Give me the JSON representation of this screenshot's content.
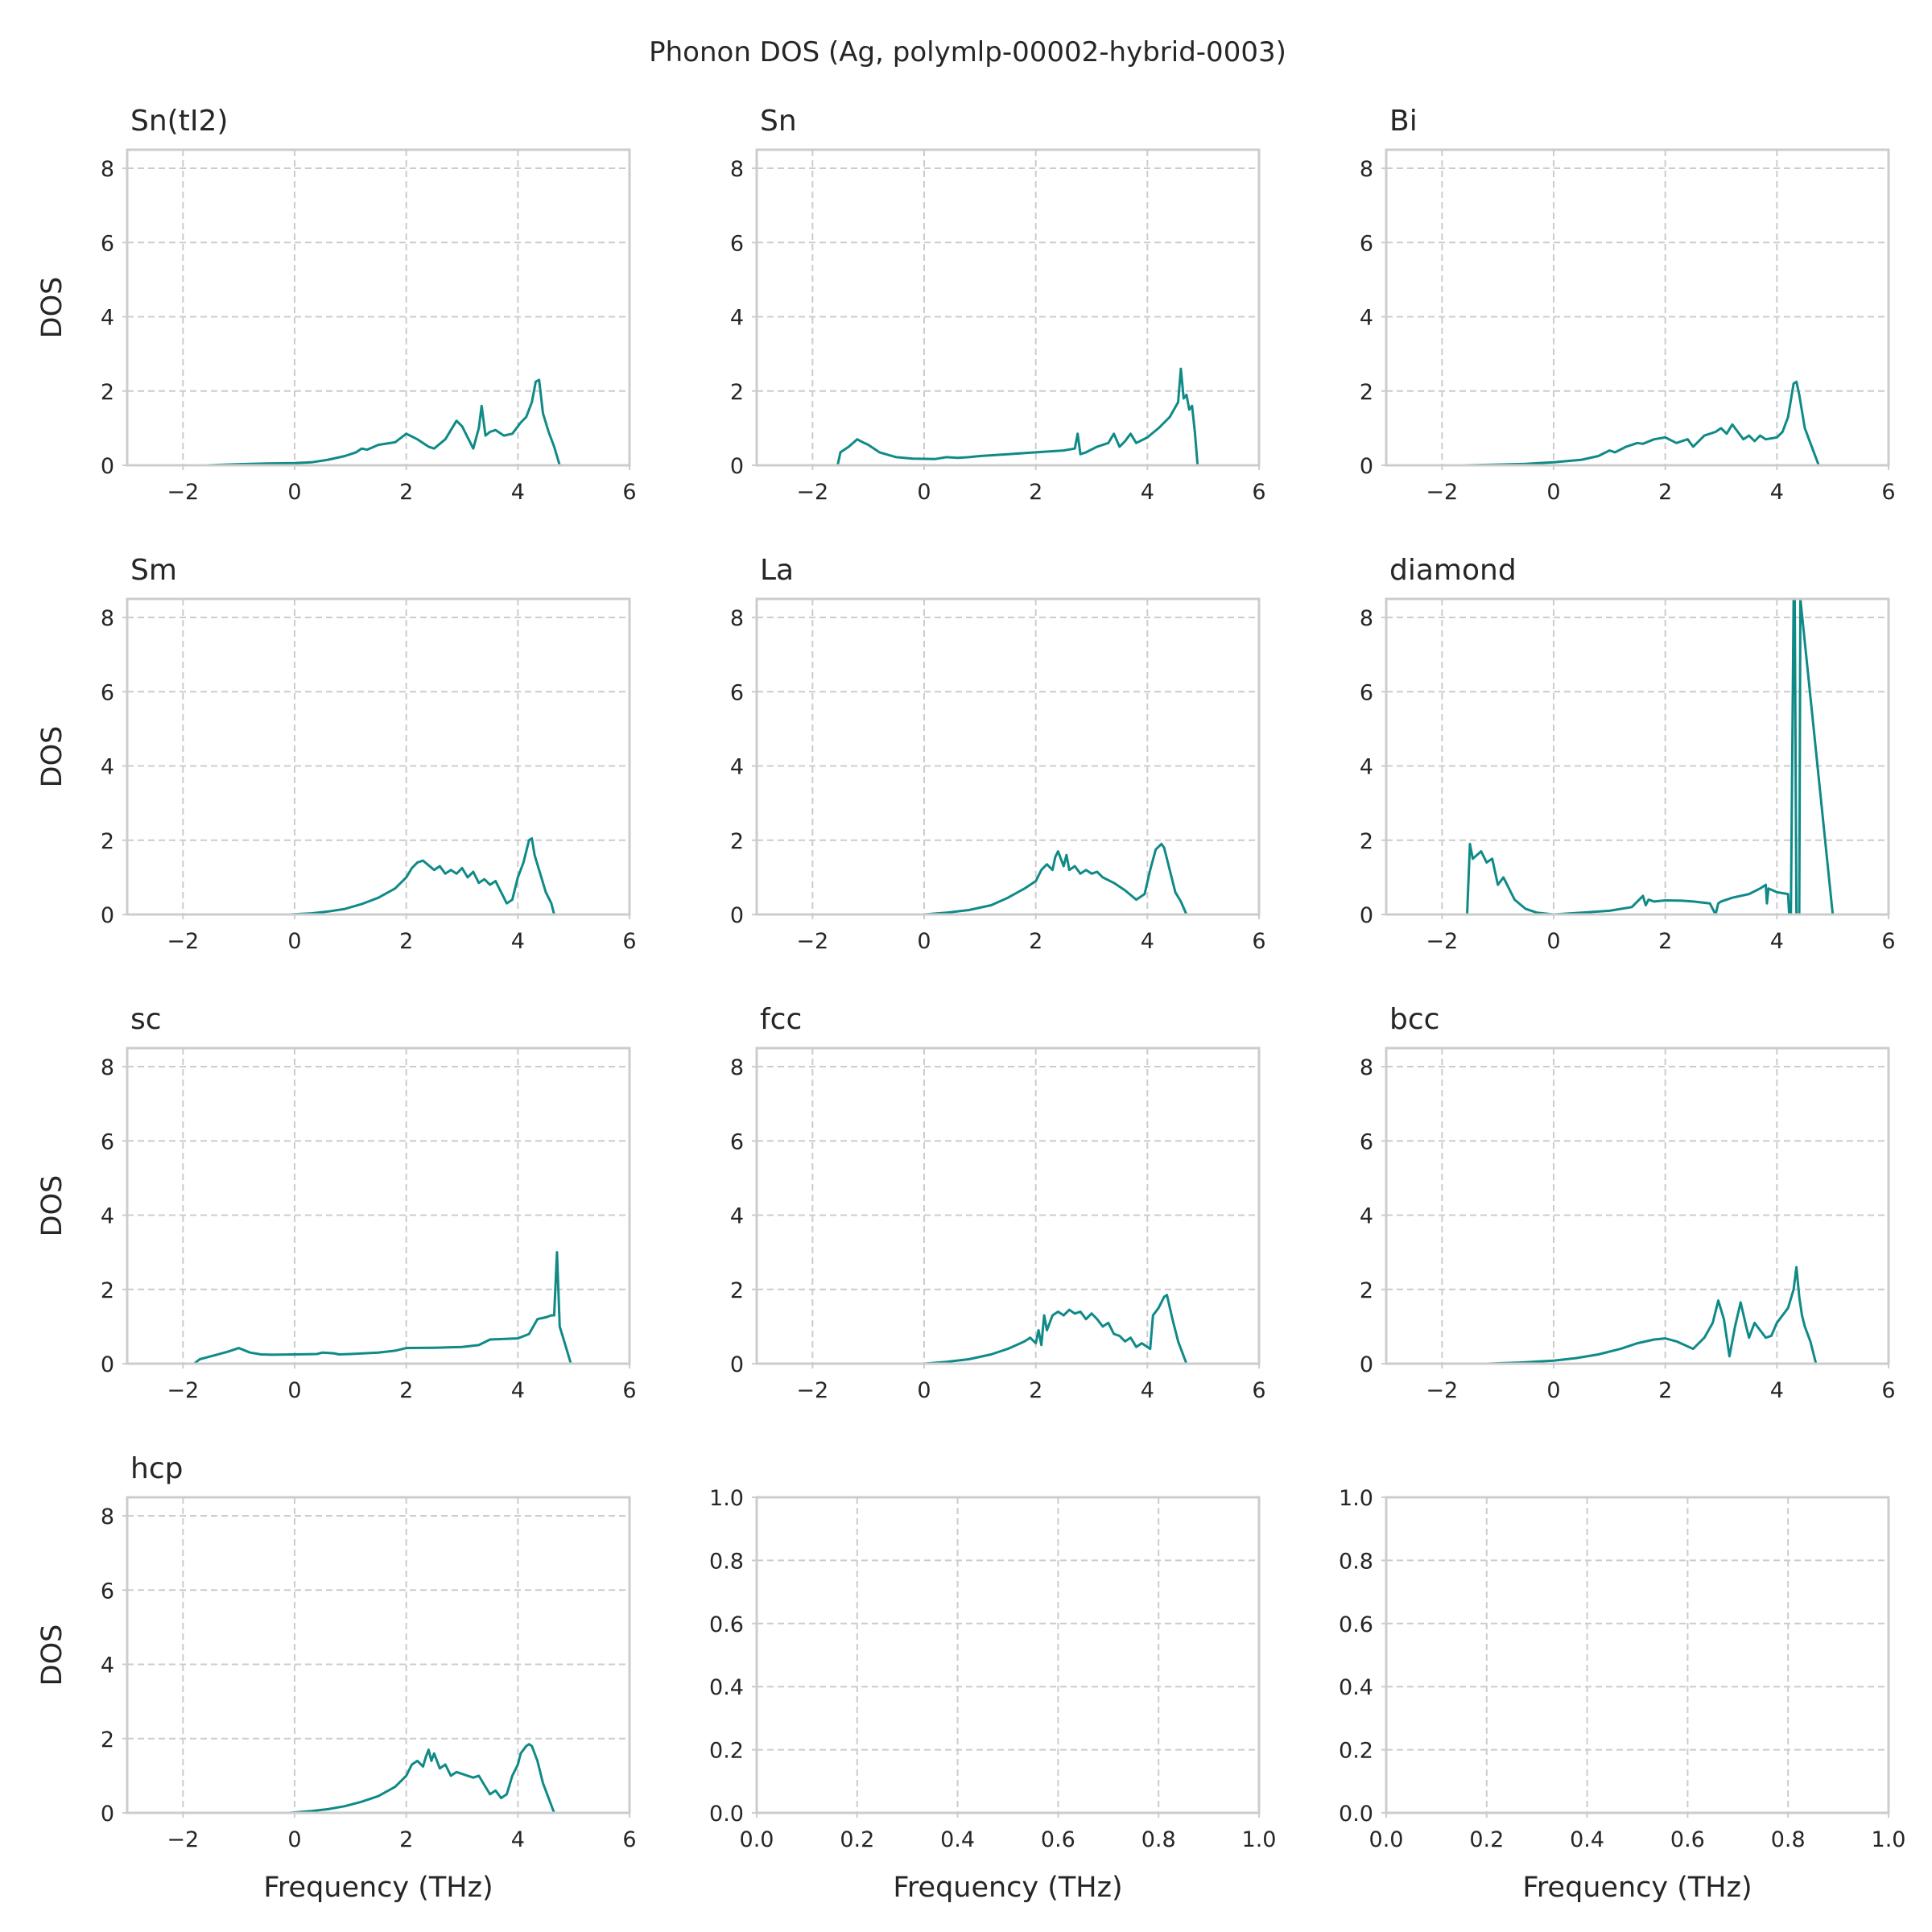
{
  "figure": {
    "title": "Phonon DOS (Ag, polymlp-00002-hybrid-0003)",
    "line_color": "#0f8a87",
    "grid_color": "#cccccc",
    "text_color": "#262626"
  },
  "chart_data": [
    {
      "type": "line",
      "title": "Sn(tI2)",
      "xlabel": "",
      "ylabel": "DOS",
      "xlim": [
        -3,
        6
      ],
      "ylim": [
        0,
        8.5
      ],
      "xticks": [
        -2,
        0,
        2,
        4,
        6
      ],
      "yticks": [
        0,
        2,
        4,
        6,
        8
      ],
      "grid": true,
      "series": [
        {
          "x": [
            -1.6,
            -1.0,
            -0.5,
            0.0,
            0.3,
            0.6,
            0.9,
            1.1,
            1.2,
            1.3,
            1.5,
            1.8,
            2.0,
            2.2,
            2.4,
            2.5,
            2.7,
            2.9,
            3.0,
            3.2,
            3.3,
            3.35,
            3.42,
            3.5,
            3.6,
            3.75,
            3.9,
            4.05,
            4.15,
            4.25,
            4.32,
            4.38,
            4.45,
            4.55,
            4.65,
            4.75,
            4.85,
            5.3
          ],
          "y": [
            0.0,
            0.03,
            0.05,
            0.06,
            0.08,
            0.15,
            0.25,
            0.35,
            0.45,
            0.42,
            0.55,
            0.62,
            0.85,
            0.7,
            0.5,
            0.45,
            0.7,
            1.2,
            1.05,
            0.45,
            1.0,
            1.6,
            0.8,
            0.9,
            0.95,
            0.8,
            0.85,
            1.15,
            1.3,
            1.7,
            2.25,
            2.3,
            1.4,
            0.9,
            0.5,
            0.0,
            0.0,
            0.0
          ]
        }
      ]
    },
    {
      "type": "line",
      "title": "Sn",
      "xlabel": "",
      "ylabel": "",
      "xlim": [
        -3,
        6
      ],
      "ylim": [
        0,
        8.5
      ],
      "xticks": [
        -2,
        0,
        2,
        4,
        6
      ],
      "yticks": [
        0,
        2,
        4,
        6,
        8
      ],
      "grid": true,
      "series": [
        {
          "x": [
            -2.2,
            -1.55,
            -1.5,
            -1.35,
            -1.2,
            -1.1,
            -1.0,
            -0.8,
            -0.5,
            -0.2,
            0.2,
            0.4,
            0.6,
            0.8,
            1.0,
            1.5,
            2.0,
            2.5,
            2.7,
            2.75,
            2.8,
            2.9,
            3.1,
            3.3,
            3.4,
            3.5,
            3.6,
            3.7,
            3.8,
            4.0,
            4.2,
            4.4,
            4.55,
            4.6,
            4.65,
            4.7,
            4.75,
            4.8,
            4.85,
            4.9,
            5.5
          ],
          "y": [
            0.0,
            0.0,
            0.35,
            0.5,
            0.7,
            0.62,
            0.55,
            0.35,
            0.22,
            0.18,
            0.17,
            0.22,
            0.2,
            0.22,
            0.25,
            0.3,
            0.35,
            0.4,
            0.45,
            0.85,
            0.3,
            0.35,
            0.5,
            0.6,
            0.85,
            0.5,
            0.65,
            0.85,
            0.6,
            0.75,
            1.0,
            1.3,
            1.7,
            2.6,
            1.8,
            1.9,
            1.5,
            1.6,
            0.9,
            0.0,
            0.0
          ]
        }
      ]
    },
    {
      "type": "line",
      "title": "Bi",
      "xlabel": "",
      "ylabel": "",
      "xlim": [
        -3,
        6
      ],
      "ylim": [
        0,
        8.5
      ],
      "xticks": [
        -2,
        0,
        2,
        4,
        6
      ],
      "yticks": [
        0,
        2,
        4,
        6,
        8
      ],
      "grid": true,
      "series": [
        {
          "x": [
            -1.6,
            -1.0,
            -0.5,
            0.0,
            0.5,
            0.8,
            1.0,
            1.1,
            1.3,
            1.5,
            1.6,
            1.8,
            2.0,
            2.2,
            2.4,
            2.5,
            2.7,
            2.9,
            3.0,
            3.1,
            3.2,
            3.3,
            3.4,
            3.5,
            3.6,
            3.7,
            3.8,
            4.0,
            4.1,
            4.2,
            4.3,
            4.35,
            4.4,
            4.5,
            4.6,
            4.75,
            5.3
          ],
          "y": [
            0.0,
            0.02,
            0.04,
            0.08,
            0.15,
            0.25,
            0.4,
            0.35,
            0.5,
            0.6,
            0.58,
            0.7,
            0.75,
            0.6,
            0.7,
            0.5,
            0.8,
            0.9,
            1.0,
            0.85,
            1.1,
            0.9,
            0.7,
            0.8,
            0.65,
            0.8,
            0.7,
            0.75,
            0.9,
            1.3,
            2.2,
            2.25,
            1.9,
            1.0,
            0.6,
            0.0,
            0.0
          ]
        }
      ]
    },
    {
      "type": "line",
      "title": "Sm",
      "xlabel": "",
      "ylabel": "DOS",
      "xlim": [
        -3,
        6
      ],
      "ylim": [
        0,
        8.5
      ],
      "xticks": [
        -2,
        0,
        2,
        4,
        6
      ],
      "yticks": [
        0,
        2,
        4,
        6,
        8
      ],
      "grid": true,
      "series": [
        {
          "x": [
            -0.1,
            0.3,
            0.6,
            0.9,
            1.2,
            1.5,
            1.8,
            2.0,
            2.1,
            2.2,
            2.3,
            2.5,
            2.6,
            2.7,
            2.8,
            2.9,
            3.0,
            3.1,
            3.2,
            3.3,
            3.4,
            3.5,
            3.6,
            3.7,
            3.8,
            3.9,
            4.0,
            4.1,
            4.15,
            4.2,
            4.25,
            4.3,
            4.4,
            4.5,
            4.6,
            4.65,
            5.1
          ],
          "y": [
            0.0,
            0.03,
            0.08,
            0.15,
            0.28,
            0.45,
            0.7,
            1.0,
            1.25,
            1.4,
            1.45,
            1.2,
            1.3,
            1.1,
            1.2,
            1.1,
            1.25,
            1.0,
            1.15,
            0.85,
            0.95,
            0.8,
            0.9,
            0.6,
            0.3,
            0.4,
            1.0,
            1.4,
            1.7,
            2.0,
            2.05,
            1.6,
            1.1,
            0.6,
            0.3,
            0.0,
            0.0
          ]
        }
      ]
    },
    {
      "type": "line",
      "title": "La",
      "xlabel": "",
      "ylabel": "",
      "xlim": [
        -3,
        6
      ],
      "ylim": [
        0,
        8.5
      ],
      "xticks": [
        -2,
        0,
        2,
        4,
        6
      ],
      "yticks": [
        0,
        2,
        4,
        6,
        8
      ],
      "grid": true,
      "series": [
        {
          "x": [
            0.0,
            0.4,
            0.8,
            1.2,
            1.5,
            1.8,
            2.0,
            2.1,
            2.2,
            2.3,
            2.35,
            2.4,
            2.5,
            2.55,
            2.6,
            2.7,
            2.8,
            2.9,
            3.0,
            3.1,
            3.2,
            3.4,
            3.6,
            3.8,
            3.95,
            4.05,
            4.15,
            4.25,
            4.3,
            4.4,
            4.5,
            4.6,
            4.7,
            5.1
          ],
          "y": [
            0.0,
            0.05,
            0.12,
            0.25,
            0.45,
            0.7,
            0.9,
            1.2,
            1.35,
            1.2,
            1.55,
            1.7,
            1.3,
            1.6,
            1.2,
            1.3,
            1.1,
            1.2,
            1.1,
            1.15,
            1.0,
            0.85,
            0.65,
            0.4,
            0.55,
            1.2,
            1.75,
            1.9,
            1.8,
            1.2,
            0.6,
            0.35,
            0.0,
            0.0
          ]
        }
      ]
    },
    {
      "type": "line",
      "title": "diamond",
      "xlabel": "",
      "ylabel": "",
      "xlim": [
        -3,
        6
      ],
      "ylim": [
        0,
        8.5
      ],
      "xticks": [
        -2,
        0,
        2,
        4,
        6
      ],
      "yticks": [
        0,
        2,
        4,
        6,
        8
      ],
      "grid": true,
      "series": [
        {
          "x": [
            -2.0,
            -1.55,
            -1.5,
            -1.45,
            -1.3,
            -1.2,
            -1.1,
            -1.0,
            -0.9,
            -0.7,
            -0.5,
            -0.3,
            0.0,
            0.5,
            1.0,
            1.4,
            1.6,
            1.65,
            1.7,
            1.8,
            2.0,
            2.3,
            2.5,
            2.8,
            2.9,
            2.95,
            3.0,
            3.2,
            3.5,
            3.7,
            3.8,
            3.82,
            3.85,
            4.0,
            4.2,
            4.22,
            4.25,
            4.3,
            4.32,
            4.35,
            4.4,
            4.42,
            5.0
          ],
          "y": [
            0.0,
            0.0,
            1.9,
            1.5,
            1.7,
            1.4,
            1.5,
            0.8,
            1.0,
            0.4,
            0.15,
            0.05,
            0.0,
            0.05,
            0.1,
            0.2,
            0.5,
            0.25,
            0.4,
            0.35,
            0.38,
            0.37,
            0.35,
            0.3,
            0.0,
            0.3,
            0.35,
            0.45,
            0.55,
            0.7,
            0.8,
            0.3,
            0.7,
            0.6,
            0.55,
            0.0,
            0.0,
            8.5,
            8.5,
            0.0,
            0.0,
            8.5,
            0.0
          ]
        }
      ]
    },
    {
      "type": "line",
      "title": "sc",
      "xlabel": "",
      "ylabel": "DOS",
      "xlim": [
        -3,
        6
      ],
      "ylim": [
        0,
        8.5
      ],
      "xticks": [
        -2,
        0,
        2,
        4,
        6
      ],
      "yticks": [
        0,
        2,
        4,
        6,
        8
      ],
      "grid": true,
      "series": [
        {
          "x": [
            -2.4,
            -1.8,
            -1.7,
            -1.5,
            -1.2,
            -1.0,
            -0.8,
            -0.6,
            -0.4,
            0.0,
            0.4,
            0.5,
            0.7,
            0.8,
            1.0,
            1.5,
            1.8,
            2.0,
            2.5,
            3.0,
            3.3,
            3.5,
            4.0,
            4.2,
            4.35,
            4.5,
            4.6,
            4.65,
            4.7,
            4.75,
            4.85,
            4.95,
            5.5
          ],
          "y": [
            0.0,
            0.0,
            0.12,
            0.2,
            0.32,
            0.42,
            0.3,
            0.25,
            0.24,
            0.25,
            0.26,
            0.3,
            0.28,
            0.25,
            0.26,
            0.3,
            0.35,
            0.42,
            0.43,
            0.45,
            0.5,
            0.65,
            0.68,
            0.8,
            1.2,
            1.25,
            1.3,
            1.3,
            3.0,
            1.0,
            0.5,
            0.0,
            0.0
          ]
        }
      ]
    },
    {
      "type": "line",
      "title": "fcc",
      "xlabel": "",
      "ylabel": "",
      "xlim": [
        -3,
        6
      ],
      "ylim": [
        0,
        8.5
      ],
      "xticks": [
        -2,
        0,
        2,
        4,
        6
      ],
      "yticks": [
        0,
        2,
        4,
        6,
        8
      ],
      "grid": true,
      "series": [
        {
          "x": [
            0.0,
            0.4,
            0.8,
            1.2,
            1.5,
            1.8,
            1.9,
            2.0,
            2.05,
            2.1,
            2.15,
            2.2,
            2.3,
            2.4,
            2.5,
            2.6,
            2.7,
            2.8,
            2.9,
            3.0,
            3.1,
            3.2,
            3.3,
            3.4,
            3.5,
            3.6,
            3.7,
            3.8,
            3.9,
            4.05,
            4.1,
            4.2,
            4.3,
            4.35,
            4.45,
            4.55,
            4.7,
            5.2
          ],
          "y": [
            0.0,
            0.05,
            0.12,
            0.25,
            0.4,
            0.6,
            0.7,
            0.55,
            0.9,
            0.5,
            1.3,
            0.9,
            1.3,
            1.4,
            1.3,
            1.45,
            1.35,
            1.4,
            1.2,
            1.35,
            1.2,
            1.0,
            1.1,
            0.8,
            0.75,
            0.6,
            0.7,
            0.45,
            0.55,
            0.4,
            1.3,
            1.5,
            1.8,
            1.85,
            1.2,
            0.6,
            0.0,
            0.0
          ]
        }
      ]
    },
    {
      "type": "line",
      "title": "bcc",
      "xlabel": "",
      "ylabel": "",
      "xlim": [
        -3,
        6
      ],
      "ylim": [
        0,
        8.5
      ],
      "xticks": [
        -2,
        0,
        2,
        4,
        6
      ],
      "yticks": [
        0,
        2,
        4,
        6,
        8
      ],
      "grid": true,
      "series": [
        {
          "x": [
            -1.2,
            -0.6,
            0.0,
            0.4,
            0.8,
            1.2,
            1.5,
            1.8,
            2.0,
            2.2,
            2.5,
            2.7,
            2.85,
            2.95,
            3.05,
            3.15,
            3.25,
            3.35,
            3.45,
            3.5,
            3.6,
            3.7,
            3.8,
            3.9,
            4.0,
            4.2,
            4.3,
            4.35,
            4.4,
            4.45,
            4.5,
            4.6,
            4.7,
            5.3
          ],
          "y": [
            0.0,
            0.03,
            0.08,
            0.15,
            0.25,
            0.4,
            0.55,
            0.65,
            0.68,
            0.6,
            0.4,
            0.7,
            1.1,
            1.7,
            1.2,
            0.2,
            1.0,
            1.65,
            1.0,
            0.7,
            1.1,
            0.9,
            0.7,
            0.75,
            1.1,
            1.5,
            2.0,
            2.6,
            1.8,
            1.3,
            1.0,
            0.6,
            0.0,
            0.0
          ]
        }
      ]
    },
    {
      "type": "line",
      "title": "hcp",
      "xlabel": "Frequency (THz)",
      "ylabel": "DOS",
      "xlim": [
        -3,
        6
      ],
      "ylim": [
        0,
        8.5
      ],
      "xticks": [
        -2,
        0,
        2,
        4,
        6
      ],
      "yticks": [
        0,
        2,
        4,
        6,
        8
      ],
      "grid": true,
      "series": [
        {
          "x": [
            -0.1,
            0.3,
            0.6,
            0.9,
            1.2,
            1.5,
            1.8,
            2.0,
            2.1,
            2.2,
            2.3,
            2.35,
            2.4,
            2.45,
            2.5,
            2.6,
            2.7,
            2.8,
            2.9,
            3.0,
            3.1,
            3.2,
            3.3,
            3.4,
            3.5,
            3.6,
            3.7,
            3.8,
            3.9,
            4.0,
            4.05,
            4.15,
            4.2,
            4.25,
            4.35,
            4.45,
            4.55,
            4.65,
            5.1
          ],
          "y": [
            0.0,
            0.05,
            0.1,
            0.18,
            0.3,
            0.45,
            0.7,
            1.0,
            1.3,
            1.4,
            1.25,
            1.5,
            1.7,
            1.4,
            1.6,
            1.2,
            1.3,
            1.0,
            1.1,
            1.05,
            1.0,
            0.95,
            1.0,
            0.75,
            0.5,
            0.6,
            0.4,
            0.5,
            1.0,
            1.3,
            1.6,
            1.8,
            1.85,
            1.8,
            1.4,
            0.8,
            0.4,
            0.0,
            0.0
          ]
        }
      ]
    },
    {
      "type": "line",
      "title": "",
      "xlabel": "Frequency (THz)",
      "ylabel": "",
      "xlim": [
        0,
        1
      ],
      "ylim": [
        0,
        1
      ],
      "xticks": [
        0.0,
        0.2,
        0.4,
        0.6,
        0.8,
        1.0
      ],
      "yticks": [
        0.0,
        0.2,
        0.4,
        0.6,
        0.8,
        1.0
      ],
      "grid": true,
      "series": []
    },
    {
      "type": "line",
      "title": "",
      "xlabel": "Frequency (THz)",
      "ylabel": "",
      "xlim": [
        0,
        1
      ],
      "ylim": [
        0,
        1
      ],
      "xticks": [
        0.0,
        0.2,
        0.4,
        0.6,
        0.8,
        1.0
      ],
      "yticks": [
        0.0,
        0.2,
        0.4,
        0.6,
        0.8,
        1.0
      ],
      "grid": true,
      "series": []
    }
  ]
}
